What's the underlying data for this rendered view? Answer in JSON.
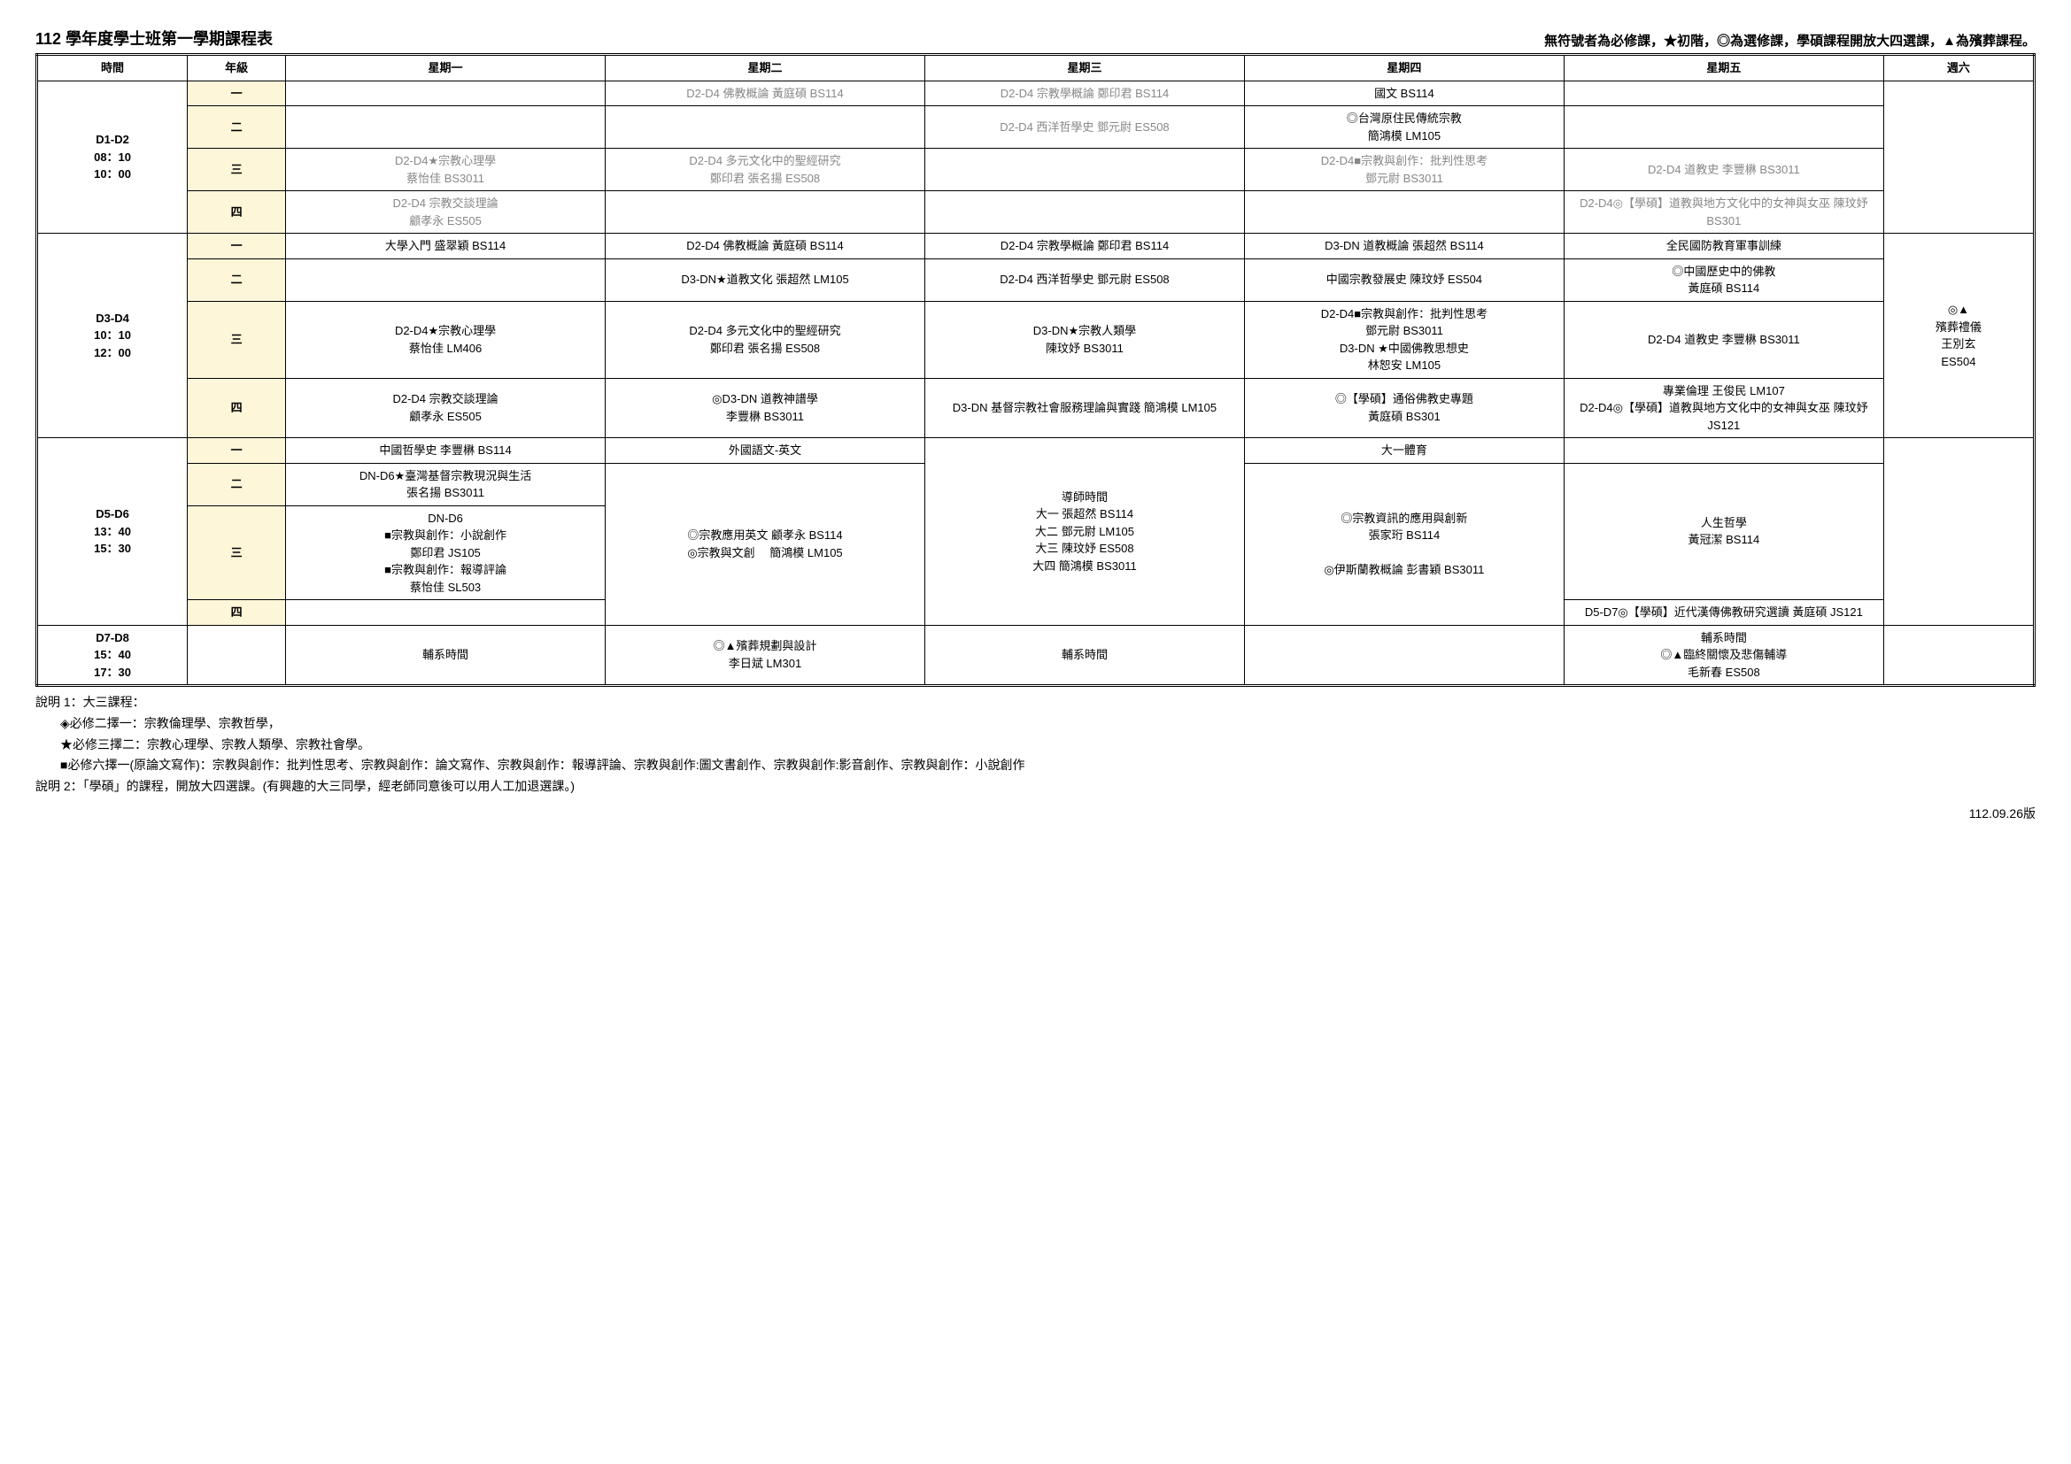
{
  "header": {
    "title": "112 學年度學士班第一學期課程表",
    "legend": "無符號者為必修課，★初階，◎為選修課，學碩課程開放大四選課，▲為殯葬課程。"
  },
  "columns": [
    "時間",
    "年級",
    "星期一",
    "星期二",
    "星期三",
    "星期四",
    "星期五",
    "週六"
  ],
  "periods": [
    {
      "time": "D1-D2\n08：10\n10：00",
      "rows": [
        {
          "grade": "一",
          "mon": "",
          "tue_muted": "D2-D4 佛教概論 黃庭碩 BS114",
          "wed_muted": "D2-D4 宗教學概論 鄭印君 BS114",
          "thu": "國文 BS114",
          "fri": ""
        },
        {
          "grade": "二",
          "mon": "",
          "tue": "",
          "wed_muted": "D2-D4 西洋哲學史 鄧元尉 ES508",
          "thu": "◎台灣原住民傳統宗教\n簡鴻模 LM105",
          "fri": ""
        },
        {
          "grade": "三",
          "mon_muted": "D2-D4★宗教心理學\n蔡怡佳 BS3011",
          "tue_muted": "D2-D4 多元文化中的聖經研究\n鄭印君 張名揚 ES508",
          "wed": "",
          "thu_muted": "D2-D4■宗教與創作：批判性思考\n鄧元尉 BS3011",
          "fri_muted": "D2-D4 道教史 李豐楙 BS3011"
        },
        {
          "grade": "四",
          "mon_muted": "D2-D4 宗教交談理論\n顧孝永 ES505",
          "tue": "",
          "wed": "",
          "thu": "",
          "fri_muted": "D2-D4◎【學碩】道教與地方文化中的女神與女巫 陳玟妤 BS301"
        }
      ],
      "sat": ""
    },
    {
      "time": "D3-D4\n10：10\n12：00",
      "rows": [
        {
          "grade": "一",
          "mon": "大學入門 盛翠穎 BS114",
          "tue": "D2-D4 佛教概論 黃庭碩 BS114",
          "wed": "D2-D4 宗教學概論 鄭印君 BS114",
          "thu": "D3-DN 道教概論 張超然 BS114",
          "fri": "全民國防教育軍事訓練"
        },
        {
          "grade": "二",
          "mon": "",
          "tue": "D3-DN★道教文化 張超然 LM105",
          "wed": "D2-D4 西洋哲學史 鄧元尉 ES508",
          "thu": "中國宗教發展史 陳玟妤 ES504",
          "fri": "◎中國歷史中的佛教\n黃庭碩 BS114"
        },
        {
          "grade": "三",
          "mon": "D2-D4★宗教心理學\n蔡怡佳 LM406",
          "tue": "D2-D4 多元文化中的聖經研究\n鄭印君 張名揚 ES508",
          "wed": "D3-DN★宗教人類學\n陳玟妤 BS3011",
          "thu": "D2-D4■宗教與創作：批判性思考\n鄧元尉 BS3011\nD3-DN ★中國佛教思想史\n林恕安 LM105",
          "fri": "D2-D4 道教史 李豐楙 BS3011"
        },
        {
          "grade": "四",
          "mon": "D2-D4 宗教交談理論\n顧孝永 ES505",
          "tue": "◎D3-DN 道教神譜學\n李豐楙 BS3011",
          "wed": "D3-DN 基督宗教社會服務理論與實踐 簡鴻模 LM105",
          "thu": "◎【學碩】通俗佛教史專題\n黃庭碩 BS301",
          "fri": "專業倫理 王俊民 LM107\nD2-D4◎【學碩】道教與地方文化中的女神與女巫 陳玟妤 JS121"
        }
      ],
      "sat": "◎▲\n殯葬禮儀\n王別玄\nES504"
    },
    {
      "time": "D5-D6\n13：40\n15：30",
      "rows": [
        {
          "grade": "一",
          "mon": "中國哲學史 李豐楙 BS114",
          "tue": "外國語文-英文",
          "thu": "大一體育"
        },
        {
          "grade": "二",
          "mon": "DN-D6★臺灣基督宗教現況與生活\n張名揚 BS3011"
        },
        {
          "grade": "三",
          "mon": "DN-D6\n■宗教與創作：小說創作\n鄭印君 JS105\n■宗教與創作：報導評論\n蔡怡佳 SL503",
          "tue_span": "◎宗教應用英文 顧孝永 BS114\n◎宗教與文創　 簡鴻模 LM105",
          "thu_span": "◎宗教資訊的應用與創新\n張家珩 BS114\n\n◎伊斯蘭教概論 彭書穎 BS3011",
          "fri_span": "人生哲學\n黃冠潔 BS114"
        },
        {
          "grade": "四",
          "mon": "",
          "fri": "D5-D7◎【學碩】近代漢傳佛教研究選讀 黃庭碩 JS121"
        }
      ],
      "wed_full": "導師時間\n大一 張超然 BS114\n大二 鄧元尉 LM105\n大三 陳玟妤 ES508\n大四 簡鴻模 BS3011",
      "sat": ""
    },
    {
      "time": "D7-D8\n15：40\n17：30",
      "single": {
        "mon": "輔系時間",
        "tue": "◎▲殯葬規劃與設計\n李日斌 LM301",
        "wed": "輔系時間",
        "thu": "",
        "fri": "輔系時間\n◎▲臨終關懷及悲傷輔導\n毛新春 ES508",
        "sat": ""
      }
    }
  ],
  "notes": {
    "line1": "說明 1：大三課程：",
    "line2": "◈必修二擇一：宗教倫理學、宗教哲學，",
    "line3": "★必修三擇二：宗教心理學、宗教人類學、宗教社會學。",
    "line4": "■必修六擇一(原論文寫作)：宗教與創作：批判性思考、宗教與創作：論文寫作、宗教與創作：報導評論、宗教與創作:圖文書創作、宗教與創作:影音創作、宗教與創作：小說創作",
    "line5": "說明 2：「學碩」的課程，開放大四選課。(有興趣的大三同學，經老師同意後可以用人工加退選課。)"
  },
  "version": "112.09.26版"
}
